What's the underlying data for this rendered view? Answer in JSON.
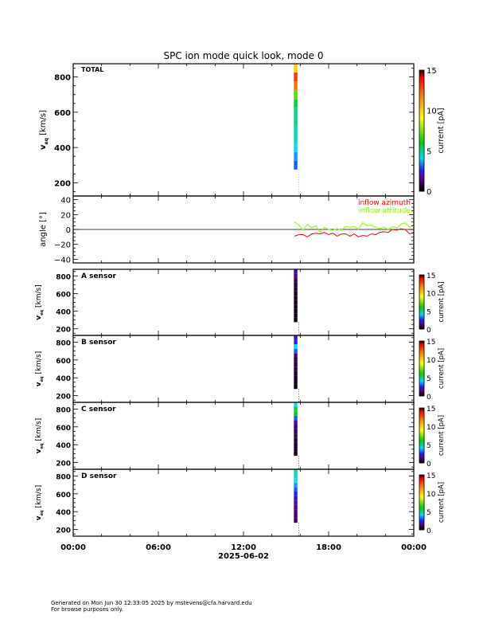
{
  "chart_data": {
    "type": "heatmap",
    "title": "SPC ion mode quick look, mode 0",
    "xlabel": "2025-06-02",
    "x_ticks": [
      "00:00",
      "06:00",
      "12:00",
      "18:00",
      "00:00"
    ],
    "xlim_hours": [
      0,
      24
    ],
    "marker_line_hours": 15.9,
    "colorbar": {
      "label": "current [pA]",
      "ticks": [
        "0",
        "5",
        "10",
        "15"
      ],
      "range": [
        0,
        15
      ]
    },
    "panels": [
      {
        "id": "total",
        "label": "TOTAL",
        "ylabel": "v",
        "ylabel_sub": "eq",
        "ylabel_unit": "[km/s]",
        "ylim": [
          125,
          875
        ],
        "y_ticks": [
          "200",
          "400",
          "600",
          "800"
        ],
        "time_hours": [
          15.55,
          15.8
        ],
        "velocity_bins": [
          300,
          350,
          400,
          450,
          500,
          550,
          600,
          650,
          700,
          750,
          800,
          850
        ],
        "values": [
          3,
          3.5,
          4,
          4.5,
          4.5,
          5,
          5,
          5.5,
          7,
          12,
          13,
          10
        ]
      },
      {
        "id": "a",
        "label": "A sensor",
        "ylabel": "v",
        "ylabel_sub": "eq",
        "ylabel_unit": "[km/s]",
        "ylim": [
          125,
          875
        ],
        "y_ticks": [
          "200",
          "400",
          "600",
          "800"
        ],
        "time_hours": [
          15.55,
          15.8
        ],
        "velocity_bins": [
          300,
          350,
          400,
          450,
          500,
          550,
          600,
          650,
          700,
          750,
          800,
          850
        ],
        "values": [
          0.3,
          0.3,
          0.3,
          0.3,
          0.4,
          0.4,
          0.5,
          0.6,
          0.8,
          1,
          1.5,
          2
        ]
      },
      {
        "id": "b",
        "label": "B sensor",
        "ylabel": "v",
        "ylabel_sub": "eq",
        "ylabel_unit": "[km/s]",
        "ylim": [
          125,
          875
        ],
        "y_ticks": [
          "200",
          "400",
          "600",
          "800"
        ],
        "time_hours": [
          15.55,
          15.8
        ],
        "velocity_bins": [
          300,
          350,
          400,
          450,
          500,
          550,
          600,
          650,
          700,
          750,
          800,
          850
        ],
        "values": [
          0.3,
          0.4,
          0.5,
          0.6,
          0.7,
          0.8,
          1,
          1.2,
          3,
          4,
          2.5,
          2
        ]
      },
      {
        "id": "c",
        "label": "C sensor",
        "ylabel": "v",
        "ylabel_sub": "eq",
        "ylabel_unit": "[km/s]",
        "ylim": [
          125,
          875
        ],
        "y_ticks": [
          "200",
          "400",
          "600",
          "800"
        ],
        "time_hours": [
          15.55,
          15.8
        ],
        "velocity_bins": [
          300,
          350,
          400,
          450,
          500,
          550,
          600,
          650,
          700,
          750,
          800,
          850
        ],
        "values": [
          0.4,
          0.5,
          0.6,
          0.7,
          0.8,
          1,
          1.2,
          2,
          3,
          6,
          5.5,
          4
        ]
      },
      {
        "id": "d",
        "label": "D sensor",
        "ylabel": "v",
        "ylabel_sub": "eq",
        "ylabel_unit": "[km/s]",
        "ylim": [
          125,
          875
        ],
        "y_ticks": [
          "200",
          "400",
          "600",
          "800"
        ],
        "time_hours": [
          15.55,
          15.8
        ],
        "velocity_bins": [
          300,
          350,
          400,
          450,
          500,
          550,
          600,
          650,
          700,
          750,
          800,
          850
        ],
        "values": [
          1,
          1.2,
          1.4,
          1.6,
          1.8,
          2,
          2.5,
          3,
          3.5,
          4,
          4.5,
          4.5
        ]
      }
    ],
    "angle_panel": {
      "ylabel": "angle [°]",
      "ylim": [
        -45,
        45
      ],
      "y_ticks": [
        "40",
        "20",
        "0",
        "−20",
        "−40"
      ],
      "series": [
        {
          "name": "inflow azimuth",
          "color": "#ff0000",
          "x": [
            15.6,
            15.9,
            16.2,
            16.5,
            16.8,
            17.1,
            17.4,
            17.7,
            18.0,
            18.3,
            18.6,
            18.9,
            19.2,
            19.5,
            19.8,
            20.1,
            20.4,
            20.7,
            21.0,
            21.3,
            21.6,
            21.9,
            22.2,
            22.5,
            22.8,
            23.1,
            23.4,
            23.7,
            24.0
          ],
          "y": [
            -9,
            -7,
            -7,
            -10,
            -6,
            -5,
            -6,
            -4,
            -7,
            -5,
            -9,
            -6,
            -6,
            -9,
            -6,
            -10,
            -8,
            -9,
            -6,
            -7,
            -4,
            -3,
            -4,
            0,
            -1,
            1,
            0,
            -6,
            -4
          ]
        },
        {
          "name": "inflow attitude",
          "color": "#7fff00",
          "x": [
            15.6,
            15.9,
            16.2,
            16.5,
            16.8,
            17.1,
            17.4,
            17.7,
            18.0,
            18.3,
            18.6,
            18.9,
            19.2,
            19.5,
            19.8,
            20.1,
            20.4,
            20.7,
            21.0,
            21.3,
            21.6,
            21.9,
            22.2,
            22.5,
            22.8,
            23.1,
            23.4,
            23.7,
            24.0
          ],
          "y": [
            10,
            6,
            -1,
            7,
            2,
            5,
            -4,
            3,
            0,
            -1,
            1,
            -1,
            4,
            3,
            4,
            0,
            9,
            5,
            6,
            3,
            1,
            3,
            0,
            4,
            2,
            7,
            9,
            3,
            6
          ]
        }
      ]
    }
  },
  "footer": {
    "line1": "Generated on Mon Jun 30 12:33:05 2025 by mstevens@cfa.harvard.edu",
    "line2": "For browse purposes only."
  }
}
